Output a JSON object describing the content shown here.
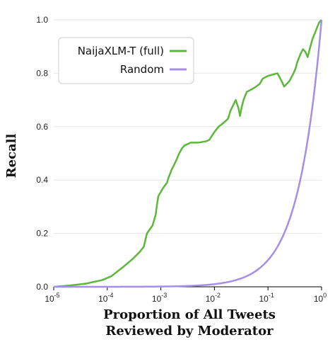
{
  "chart_data": {
    "type": "line",
    "xscale": "log",
    "xlim": [
      1e-05,
      1
    ],
    "ylim": [
      0,
      1
    ],
    "grid": "horizontal",
    "xlabel": [
      "Proportion of All Tweets",
      "Reviewed by Moderator"
    ],
    "ylabel": "Recall",
    "x_ticks": [
      {
        "base": "10",
        "exp": "-5",
        "value": 1e-05
      },
      {
        "base": "10",
        "exp": "-4",
        "value": 0.0001
      },
      {
        "base": "10",
        "exp": "-3",
        "value": 0.001
      },
      {
        "base": "10",
        "exp": "-2",
        "value": 0.01
      },
      {
        "base": "10",
        "exp": "-1",
        "value": 0.1
      },
      {
        "base": "10",
        "exp": "0",
        "value": 1
      }
    ],
    "y_ticks": [
      "0.0",
      "0.2",
      "0.4",
      "0.6",
      "0.8",
      "1.0"
    ],
    "y_tick_values": [
      0,
      0.2,
      0.4,
      0.6,
      0.8,
      1.0
    ],
    "legend_position": "top-left",
    "series": [
      {
        "name": "NaijaXLM-T (full)",
        "color": "#5cb83a",
        "x": [
          1e-05,
          2e-05,
          4e-05,
          8e-05,
          0.00012,
          0.00016,
          0.0002,
          0.0003,
          0.0004,
          0.00048,
          0.0005,
          0.00055,
          0.0007,
          0.0008,
          0.00085,
          0.0009,
          0.0011,
          0.0013,
          0.0014,
          0.0016,
          0.0018,
          0.002,
          0.0022,
          0.0025,
          0.0028,
          0.0032,
          0.0036,
          0.004,
          0.005,
          0.007,
          0.008,
          0.01,
          0.012,
          0.014,
          0.016,
          0.018,
          0.02,
          0.025,
          0.028,
          0.03,
          0.032,
          0.035,
          0.04,
          0.05,
          0.06,
          0.07,
          0.08,
          0.1,
          0.15,
          0.18,
          0.2,
          0.25,
          0.3,
          0.33,
          0.35,
          0.4,
          0.45,
          0.5,
          0.55,
          0.6,
          0.68,
          0.75,
          0.82,
          0.9,
          1.0
        ],
        "y": [
          0.0,
          0.005,
          0.012,
          0.025,
          0.04,
          0.06,
          0.075,
          0.105,
          0.13,
          0.15,
          0.165,
          0.2,
          0.23,
          0.27,
          0.31,
          0.34,
          0.37,
          0.39,
          0.41,
          0.44,
          0.46,
          0.48,
          0.5,
          0.52,
          0.53,
          0.535,
          0.54,
          0.54,
          0.54,
          0.545,
          0.55,
          0.58,
          0.6,
          0.61,
          0.62,
          0.63,
          0.66,
          0.7,
          0.67,
          0.64,
          0.67,
          0.7,
          0.73,
          0.74,
          0.75,
          0.76,
          0.78,
          0.79,
          0.8,
          0.77,
          0.75,
          0.77,
          0.8,
          0.82,
          0.84,
          0.87,
          0.89,
          0.88,
          0.86,
          0.89,
          0.93,
          0.95,
          0.97,
          0.99,
          1.0
        ]
      },
      {
        "name": "Random",
        "color": "#a58ee6",
        "function": "y = x (linear in proportion, drawn on log x-axis)"
      }
    ]
  }
}
